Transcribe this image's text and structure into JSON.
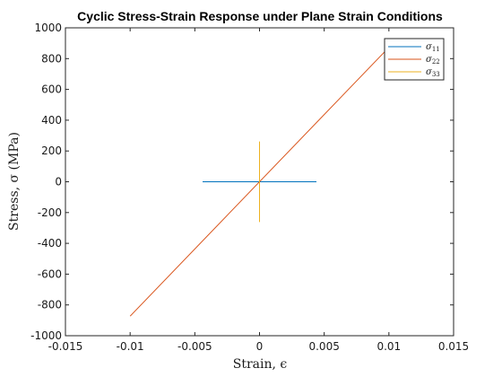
{
  "chart_data": {
    "type": "line",
    "title": "Cyclic Stress-Strain Response under Plane Strain Conditions",
    "xlabel": "Strain, ϵ",
    "ylabel": "Stress, σ (MPa)",
    "xlim": [
      -0.015,
      0.015
    ],
    "ylim": [
      -1000,
      1000
    ],
    "x_ticks": [
      -0.015,
      -0.01,
      -0.005,
      0,
      0.005,
      0.01,
      0.015
    ],
    "x_tick_labels": [
      "-0.015",
      "-0.01",
      "-0.005",
      "0",
      "0.005",
      "0.01",
      "0.015"
    ],
    "y_ticks": [
      -1000,
      -800,
      -600,
      -400,
      -200,
      0,
      200,
      400,
      600,
      800,
      1000
    ],
    "y_tick_labels": [
      "-1000",
      "-800",
      "-600",
      "-400",
      "-200",
      "0",
      "200",
      "400",
      "600",
      "800",
      "1000"
    ],
    "grid": false,
    "legend_position": "top-right",
    "series": [
      {
        "name": "σ11",
        "legend_main": "σ",
        "legend_sub": "11",
        "color": "#0072BD",
        "x": [
          -0.0044,
          0.0044
        ],
        "y": [
          0,
          0
        ]
      },
      {
        "name": "σ22",
        "legend_main": "σ",
        "legend_sub": "22",
        "color": "#D95319",
        "x": [
          -0.01,
          0.01
        ],
        "y": [
          -873,
          873
        ]
      },
      {
        "name": "σ33",
        "legend_main": "σ",
        "legend_sub": "33",
        "color": "#EDB120",
        "x": [
          0,
          0
        ],
        "y": [
          -262,
          262
        ]
      }
    ]
  }
}
